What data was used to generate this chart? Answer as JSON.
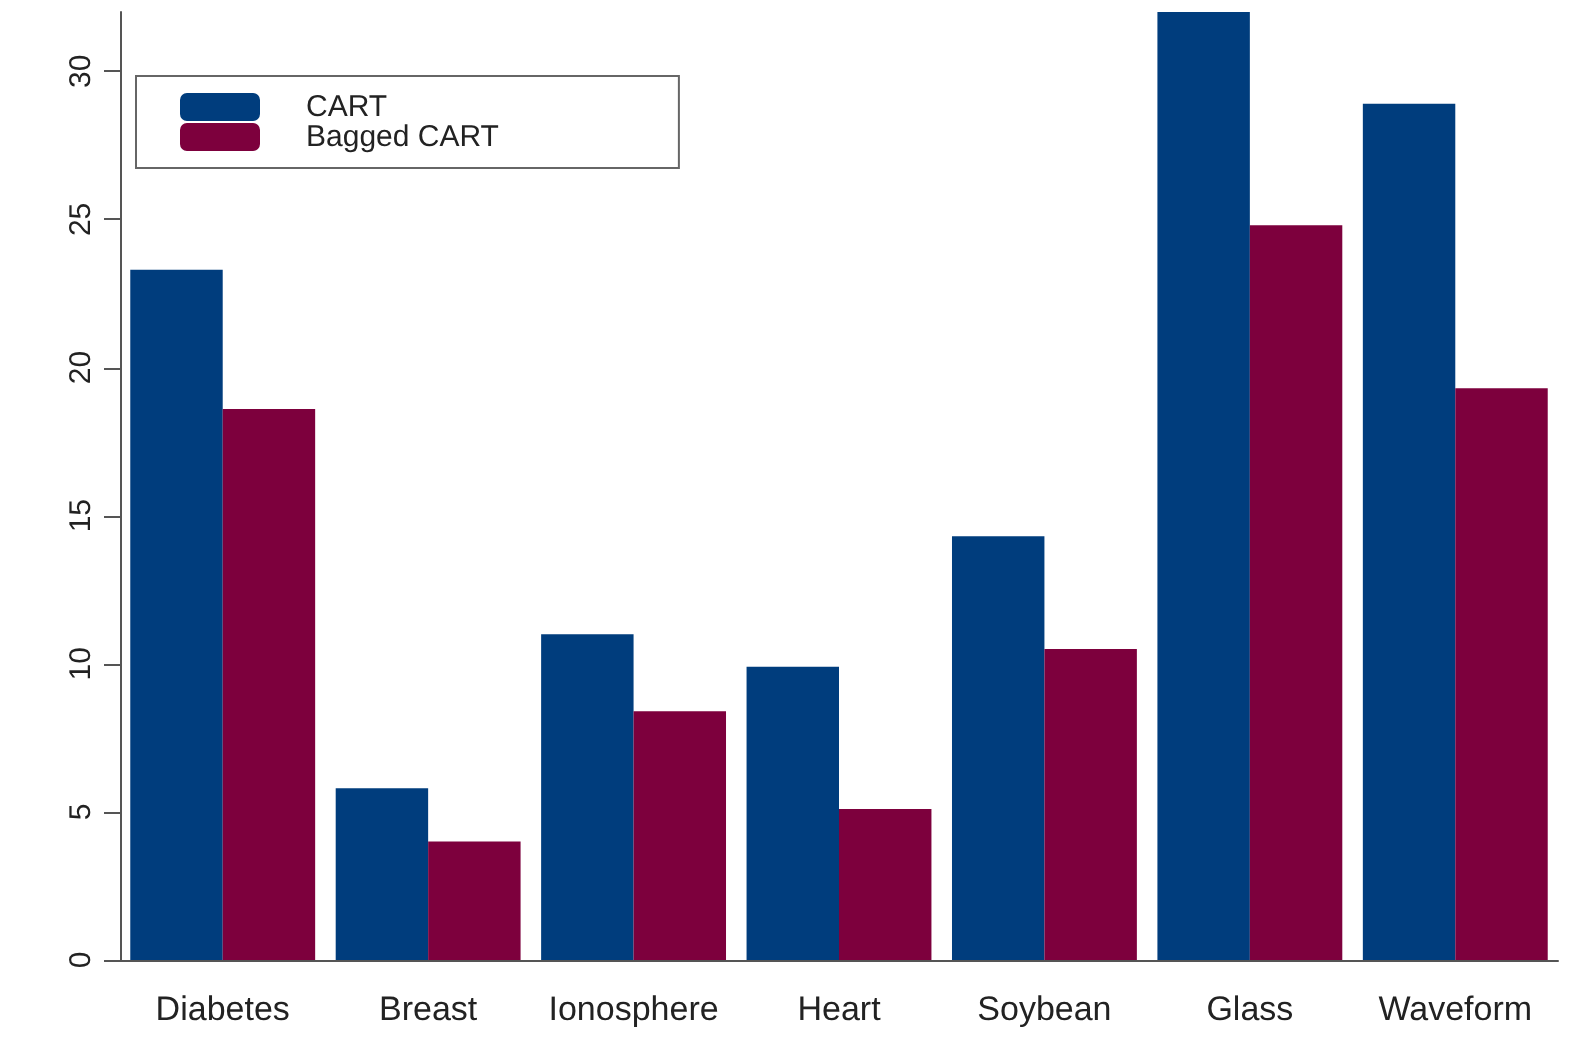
{
  "chart_data": {
    "type": "bar",
    "categories": [
      "Diabetes",
      "Breast",
      "Ionosphere",
      "Heart",
      "Soybean",
      "Glass",
      "Waveform"
    ],
    "series": [
      {
        "name": "CART",
        "color": "#003d7d",
        "values": [
          23.3,
          5.8,
          11.0,
          9.9,
          14.3,
          32.0,
          28.9
        ]
      },
      {
        "name": "Bagged CART",
        "color": "#7d003d",
        "values": [
          18.6,
          4.0,
          8.4,
          5.1,
          10.5,
          24.8,
          19.3
        ]
      }
    ],
    "ylim": [
      0,
      32
    ],
    "yticks": [
      0,
      5,
      10,
      15,
      20,
      25,
      30
    ],
    "grid": false,
    "legend": "top left"
  }
}
